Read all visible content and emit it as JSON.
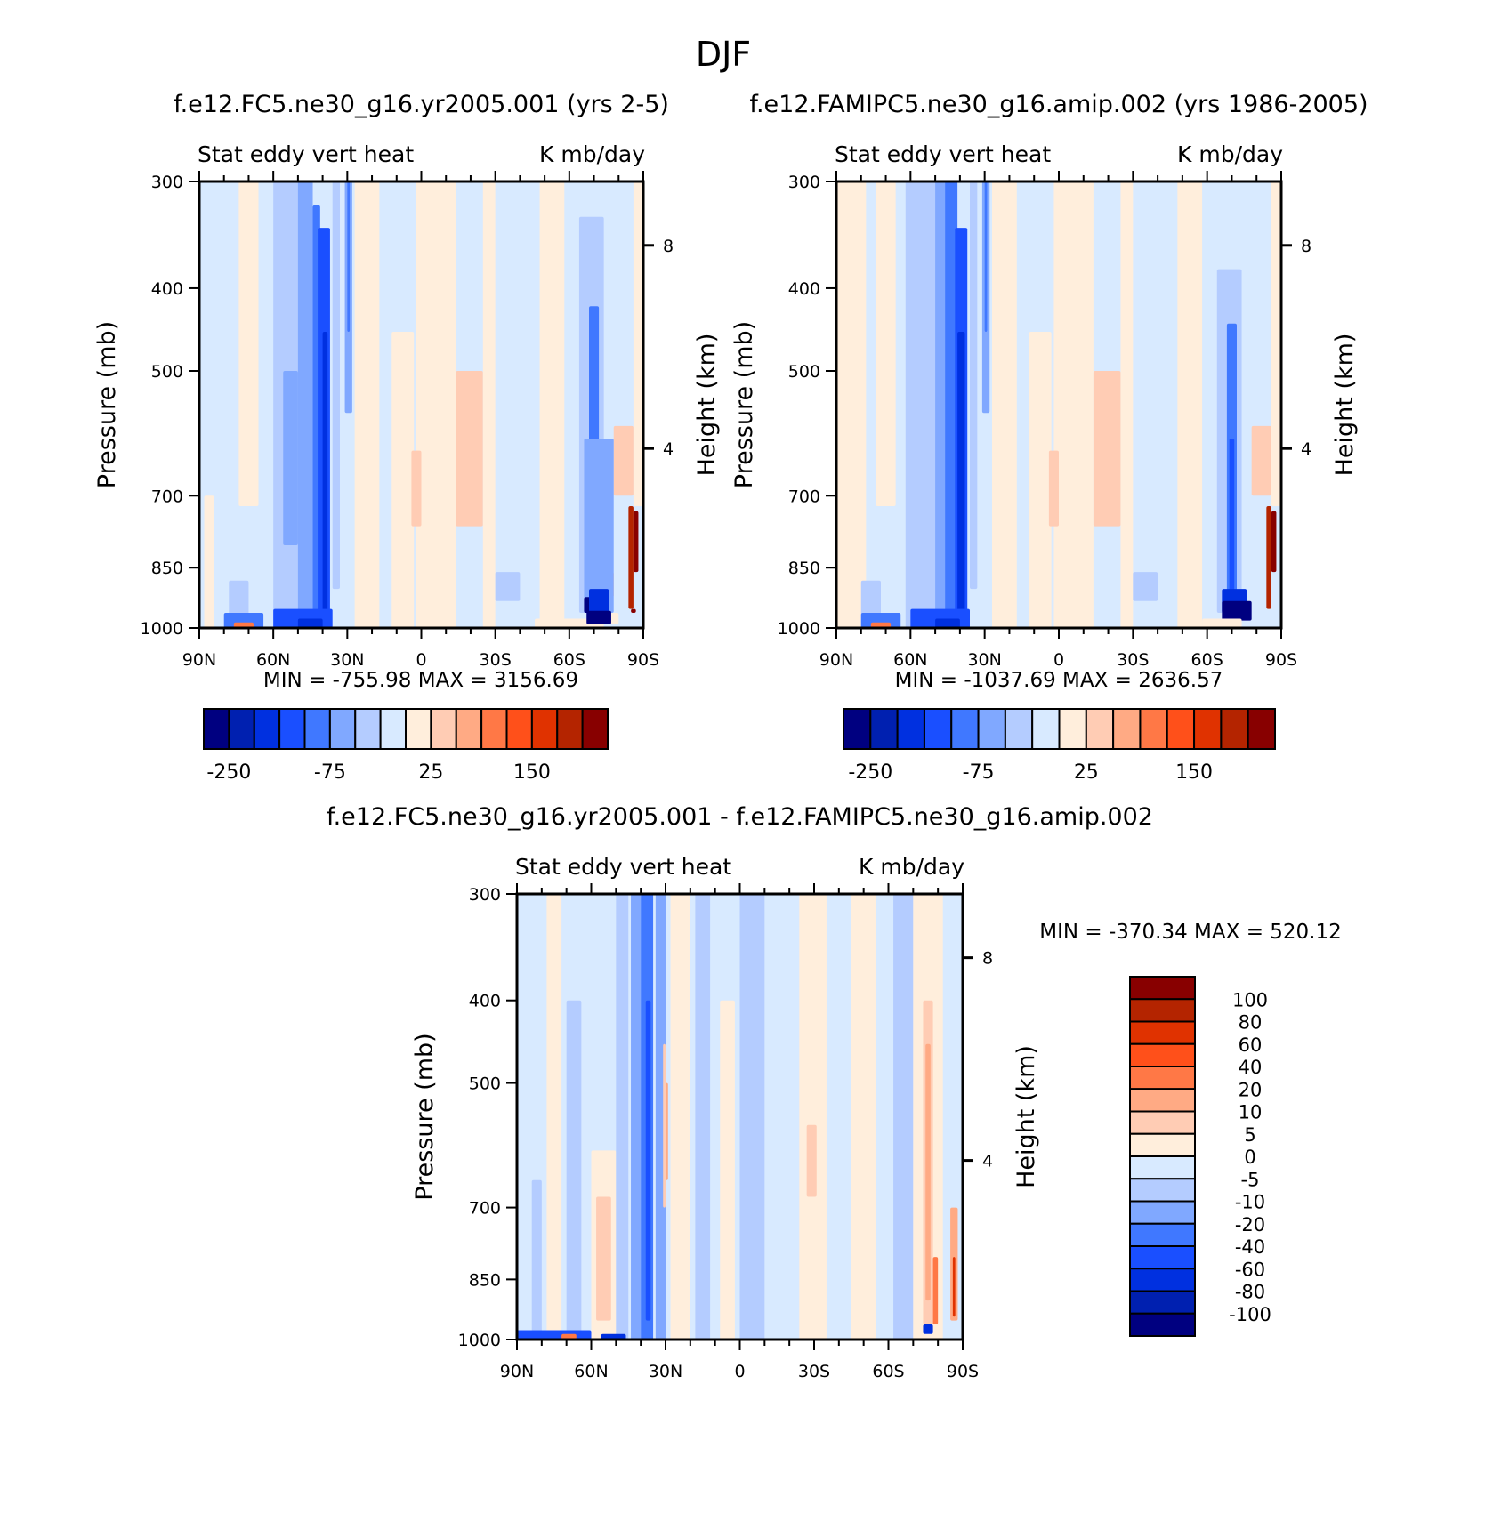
{
  "figure_title": "DJF",
  "colors": [
    "#000080",
    "#0020b0",
    "#0030e0",
    "#1a4fff",
    "#4078ff",
    "#80a8ff",
    "#b4ccff",
    "#d8eaff",
    "#ffeedc",
    "#ffccb4",
    "#ffaa84",
    "#ff7846",
    "#ff501a",
    "#e03200",
    "#b42400",
    "#880000"
  ],
  "chart_data": [
    {
      "type": "contour",
      "title": "f.e12.FC5.ne30_g16.yr2005.001 (yrs 2-5)",
      "subtitle_left": "Stat eddy vert heat",
      "subtitle_right": "K mb/day",
      "ylabel": "Pressure (mb)",
      "y2label": "Height (km)",
      "xticks": [
        "90N",
        "60N",
        "30N",
        "0",
        "30S",
        "60S",
        "90S"
      ],
      "yticks": [
        "300",
        "400",
        "500",
        "700",
        "850",
        "1000"
      ],
      "y2ticks": [
        "8",
        "4"
      ],
      "stats": "MIN = -755.98   MAX = 3156.69",
      "colorbar_labels": [
        {
          "boundary": 1,
          "label": "-250"
        },
        {
          "boundary": 5,
          "label": "-75"
        },
        {
          "boundary": 9,
          "label": "25"
        },
        {
          "boundary": 13,
          "label": "150"
        }
      ],
      "background_level": 7,
      "regions": [
        [
          88,
          84,
          700,
          1000,
          8
        ],
        [
          74,
          66,
          300,
          720,
          8
        ],
        [
          78,
          70,
          880,
          1000,
          6
        ],
        [
          60,
          48,
          300,
          1000,
          6
        ],
        [
          56,
          50,
          500,
          800,
          5
        ],
        [
          50,
          44,
          300,
          1000,
          5
        ],
        [
          44,
          41,
          320,
          1000,
          4
        ],
        [
          42,
          37,
          340,
          1000,
          3
        ],
        [
          40,
          38,
          450,
          1000,
          2
        ],
        [
          36,
          33,
          300,
          900,
          6
        ],
        [
          31,
          28,
          300,
          560,
          5
        ],
        [
          30,
          29,
          300,
          450,
          4
        ],
        [
          27,
          17,
          300,
          1000,
          8
        ],
        [
          12,
          3,
          450,
          1000,
          8
        ],
        [
          2,
          -14,
          300,
          1000,
          8
        ],
        [
          4,
          0,
          620,
          760,
          9
        ],
        [
          -14,
          -25,
          500,
          760,
          9
        ],
        [
          -25,
          -30,
          300,
          1000,
          8
        ],
        [
          -48,
          -58,
          300,
          1000,
          8
        ],
        [
          -30,
          -40,
          860,
          930,
          6
        ],
        [
          -64,
          -74,
          330,
          960,
          6
        ],
        [
          -68,
          -72,
          420,
          930,
          4
        ],
        [
          -69,
          -71,
          600,
          940,
          3
        ],
        [
          -66,
          -76,
          920,
          960,
          0
        ],
        [
          -72,
          -75,
          930,
          985,
          0
        ],
        [
          -78,
          -86,
          580,
          700,
          9
        ],
        [
          -86,
          -90,
          300,
          720,
          8
        ],
        [
          -84,
          -86,
          720,
          950,
          14
        ],
        [
          -76,
          -78,
          860,
          920,
          10
        ],
        [
          -78,
          -66,
          600,
          960,
          5
        ],
        [
          -80,
          -70,
          960,
          990,
          8
        ],
        [
          -72,
          -66,
          985,
          1000,
          8
        ],
        [
          -60,
          -54,
          985,
          1000,
          8
        ],
        [
          -85,
          -87,
          950,
          960,
          15
        ],
        [
          -66,
          -69,
          920,
          960,
          0
        ],
        [
          -86,
          -88,
          730,
          860,
          15
        ],
        [
          -58,
          -74,
          975,
          1000,
          8
        ],
        [
          -52,
          -58,
          975,
          1000,
          8
        ],
        [
          -50,
          -46,
          975,
          1000,
          8
        ],
        [
          -56,
          -60,
          975,
          1000,
          8
        ],
        [
          -68,
          -76,
          900,
          960,
          2
        ],
        [
          -67,
          -77,
          955,
          990,
          0
        ],
        [
          80,
          64,
          960,
          1000,
          4
        ],
        [
          76,
          68,
          985,
          1000,
          11
        ],
        [
          60,
          36,
          950,
          1000,
          3
        ],
        [
          50,
          40,
          975,
          1000,
          2
        ]
      ]
    },
    {
      "type": "contour",
      "title": "f.e12.FAMIPC5.ne30_g16.amip.002 (yrs 1986-2005)",
      "subtitle_left": "Stat eddy vert heat",
      "subtitle_right": "K mb/day",
      "ylabel": "Pressure (mb)",
      "y2label": "Height (km)",
      "xticks": [
        "90N",
        "60N",
        "30N",
        "0",
        "30S",
        "60S",
        "90S"
      ],
      "yticks": [
        "300",
        "400",
        "500",
        "700",
        "850",
        "1000"
      ],
      "y2ticks": [
        "8",
        "4"
      ],
      "stats": "MIN = -1037.69   MAX = 2636.57",
      "colorbar_labels": [
        {
          "boundary": 1,
          "label": "-250"
        },
        {
          "boundary": 5,
          "label": "-75"
        },
        {
          "boundary": 9,
          "label": "25"
        },
        {
          "boundary": 13,
          "label": "150"
        }
      ],
      "background_level": 7,
      "regions": [
        [
          90,
          78,
          300,
          1000,
          8
        ],
        [
          74,
          66,
          300,
          720,
          8
        ],
        [
          80,
          72,
          880,
          1000,
          6
        ],
        [
          62,
          48,
          300,
          1000,
          6
        ],
        [
          50,
          44,
          300,
          1000,
          5
        ],
        [
          46,
          41,
          300,
          1000,
          4
        ],
        [
          42,
          37,
          340,
          1000,
          3
        ],
        [
          41,
          38,
          450,
          1000,
          2
        ],
        [
          36,
          33,
          300,
          900,
          6
        ],
        [
          31,
          28,
          300,
          560,
          5
        ],
        [
          30,
          29,
          300,
          450,
          4
        ],
        [
          27,
          17,
          300,
          1000,
          8
        ],
        [
          12,
          3,
          450,
          1000,
          8
        ],
        [
          2,
          -14,
          300,
          1000,
          8
        ],
        [
          4,
          0,
          620,
          760,
          9
        ],
        [
          -14,
          -25,
          500,
          760,
          9
        ],
        [
          -25,
          -30,
          300,
          1000,
          8
        ],
        [
          -48,
          -58,
          300,
          1000,
          8
        ],
        [
          -30,
          -40,
          860,
          930,
          6
        ],
        [
          -64,
          -74,
          380,
          960,
          6
        ],
        [
          -68,
          -72,
          440,
          930,
          4
        ],
        [
          -69,
          -71,
          600,
          940,
          3
        ],
        [
          -66,
          -76,
          900,
          960,
          2
        ],
        [
          -66,
          -78,
          930,
          980,
          0
        ],
        [
          -78,
          -86,
          580,
          700,
          9
        ],
        [
          -86,
          -90,
          300,
          720,
          8
        ],
        [
          -84,
          -86,
          720,
          950,
          14
        ],
        [
          -86,
          -88,
          730,
          860,
          15
        ],
        [
          -58,
          -74,
          975,
          1000,
          8
        ],
        [
          80,
          64,
          960,
          1000,
          4
        ],
        [
          76,
          68,
          985,
          1000,
          11
        ],
        [
          60,
          36,
          950,
          1000,
          3
        ],
        [
          50,
          40,
          975,
          1000,
          2
        ]
      ]
    },
    {
      "type": "contour",
      "title": "f.e12.FC5.ne30_g16.yr2005.001 - f.e12.FAMIPC5.ne30_g16.amip.002",
      "subtitle_left": "Stat eddy vert heat",
      "subtitle_right": "K mb/day",
      "ylabel": "Pressure (mb)",
      "y2label": "Height (km)",
      "xticks": [
        "90N",
        "60N",
        "30N",
        "0",
        "30S",
        "60S",
        "90S"
      ],
      "yticks": [
        "300",
        "400",
        "500",
        "700",
        "850",
        "1000"
      ],
      "y2ticks": [
        "8",
        "4"
      ],
      "stats": "MIN = -370.34   MAX = 520.12",
      "colorbar_labels": [
        {
          "boundary": 1,
          "label": "100"
        },
        {
          "boundary": 2,
          "label": "80"
        },
        {
          "boundary": 3,
          "label": "60"
        },
        {
          "boundary": 4,
          "label": "40"
        },
        {
          "boundary": 5,
          "label": "20"
        },
        {
          "boundary": 6,
          "label": "10"
        },
        {
          "boundary": 7,
          "label": "5"
        },
        {
          "boundary": 8,
          "label": "0"
        },
        {
          "boundary": 9,
          "label": "-5"
        },
        {
          "boundary": 10,
          "label": "-10"
        },
        {
          "boundary": 11,
          "label": "-20"
        },
        {
          "boundary": 12,
          "label": "-40"
        },
        {
          "boundary": 13,
          "label": "-60"
        },
        {
          "boundary": 14,
          "label": "-80"
        },
        {
          "boundary": 15,
          "label": "-100"
        }
      ],
      "background_level": 7,
      "regions": [
        [
          84,
          80,
          650,
          1000,
          6
        ],
        [
          78,
          72,
          300,
          1000,
          8
        ],
        [
          70,
          64,
          400,
          1000,
          6
        ],
        [
          60,
          50,
          600,
          1000,
          8
        ],
        [
          58,
          52,
          680,
          950,
          9
        ],
        [
          50,
          45,
          300,
          1000,
          6
        ],
        [
          44,
          40,
          300,
          1000,
          5
        ],
        [
          40,
          35,
          300,
          1000,
          4
        ],
        [
          38,
          36,
          400,
          950,
          3
        ],
        [
          34,
          30,
          300,
          1000,
          5
        ],
        [
          31,
          30,
          450,
          700,
          9
        ],
        [
          30,
          29,
          500,
          650,
          10
        ],
        [
          28,
          20,
          300,
          1000,
          8
        ],
        [
          18,
          12,
          300,
          1000,
          6
        ],
        [
          8,
          2,
          400,
          1000,
          8
        ],
        [
          0,
          -10,
          300,
          1000,
          6
        ],
        [
          -12,
          -22,
          300,
          800,
          7
        ],
        [
          -24,
          -35,
          300,
          1000,
          8
        ],
        [
          -27,
          -31,
          560,
          680,
          9
        ],
        [
          -45,
          -55,
          300,
          1000,
          8
        ],
        [
          -62,
          -70,
          300,
          1000,
          6
        ],
        [
          -70,
          -82,
          300,
          1000,
          8
        ],
        [
          -74,
          -78,
          400,
          960,
          9
        ],
        [
          -75,
          -77,
          450,
          900,
          10
        ],
        [
          -78,
          -80,
          800,
          960,
          11
        ],
        [
          -85,
          -88,
          700,
          950,
          10
        ],
        [
          -86,
          -87,
          800,
          940,
          13
        ],
        [
          -74,
          -78,
          960,
          985,
          2
        ],
        [
          90,
          60,
          975,
          1000,
          3
        ],
        [
          72,
          66,
          985,
          1000,
          11
        ],
        [
          56,
          46,
          985,
          1000,
          2
        ]
      ]
    }
  ]
}
